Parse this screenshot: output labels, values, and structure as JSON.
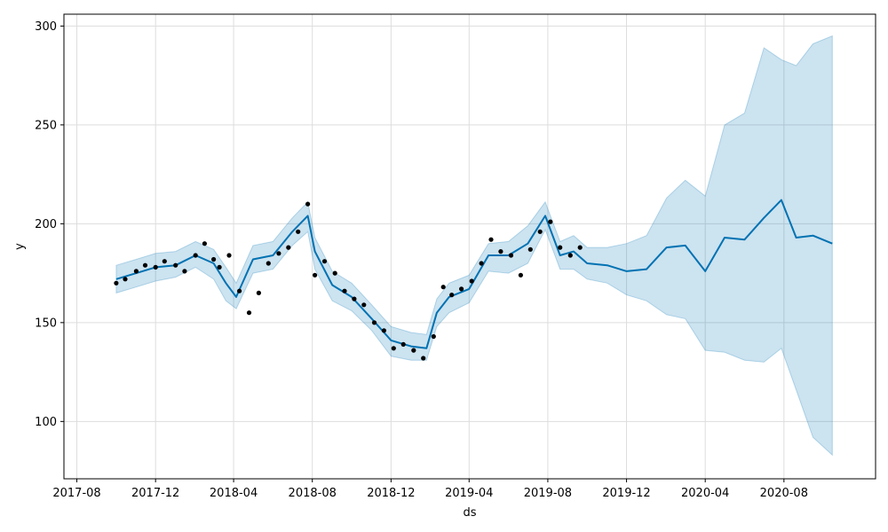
{
  "chart_data": {
    "type": "line",
    "title": "",
    "xlabel": "ds",
    "ylabel": "y",
    "grid": true,
    "colors": {
      "forecast_line": "#0072B2",
      "interval_fill": "#0072B2",
      "observed_points": "#000000",
      "grid": "#dddddd"
    },
    "x_range": [
      "2017-07-12",
      "2020-12-21"
    ],
    "ylim": [
      71,
      306
    ],
    "x_ticks": [
      {
        "date": "2017-08-01",
        "label": "2017-08"
      },
      {
        "date": "2017-12-01",
        "label": "2017-12"
      },
      {
        "date": "2018-04-01",
        "label": "2018-04"
      },
      {
        "date": "2018-08-01",
        "label": "2018-08"
      },
      {
        "date": "2018-12-01",
        "label": "2018-12"
      },
      {
        "date": "2019-04-01",
        "label": "2019-04"
      },
      {
        "date": "2019-08-01",
        "label": "2019-08"
      },
      {
        "date": "2019-12-01",
        "label": "2019-12"
      },
      {
        "date": "2020-04-01",
        "label": "2020-04"
      },
      {
        "date": "2020-08-01",
        "label": "2020-08"
      }
    ],
    "y_ticks": [
      {
        "value": 100,
        "label": "100"
      },
      {
        "value": 150,
        "label": "150"
      },
      {
        "value": 200,
        "label": "200"
      },
      {
        "value": 250,
        "label": "250"
      },
      {
        "value": 300,
        "label": "300"
      }
    ],
    "forecast": {
      "x": [
        "2017-10-01",
        "2017-11-01",
        "2017-12-01",
        "2018-01-01",
        "2018-02-01",
        "2018-03-01",
        "2018-03-20",
        "2018-04-05",
        "2018-05-01",
        "2018-06-01",
        "2018-07-01",
        "2018-07-25",
        "2018-08-05",
        "2018-09-01",
        "2018-10-01",
        "2018-11-01",
        "2018-12-01",
        "2019-01-01",
        "2019-01-25",
        "2019-02-10",
        "2019-03-01",
        "2019-04-01",
        "2019-05-01",
        "2019-06-01",
        "2019-07-01",
        "2019-07-28",
        "2019-08-20",
        "2019-09-10",
        "2019-10-01",
        "2019-11-01",
        "2019-12-01",
        "2020-01-01",
        "2020-02-01",
        "2020-03-01",
        "2020-04-01",
        "2020-05-01",
        "2020-06-01",
        "2020-07-01",
        "2020-07-28",
        "2020-08-20",
        "2020-09-15",
        "2020-10-15"
      ],
      "yhat": [
        172,
        175,
        178,
        179,
        184,
        180,
        170,
        163,
        182,
        184,
        196,
        204,
        186,
        169,
        163,
        152,
        141,
        138,
        137,
        155,
        163,
        167,
        184,
        184,
        190,
        204,
        184,
        186,
        180,
        179,
        176,
        177,
        188,
        189,
        176,
        193,
        192,
        203,
        212,
        193,
        194,
        190
      ],
      "lower": [
        165,
        168,
        171,
        173,
        178,
        172,
        161,
        157,
        175,
        177,
        189,
        196,
        177,
        161,
        156,
        146,
        133,
        131,
        131,
        148,
        155,
        160,
        176,
        175,
        180,
        197,
        177,
        177,
        172,
        170,
        164,
        161,
        154,
        152,
        136,
        135,
        131,
        130,
        137,
        116,
        92,
        83
      ],
      "upper": [
        179,
        182,
        185,
        186,
        191,
        187,
        178,
        170,
        189,
        191,
        203,
        211,
        193,
        176,
        170,
        159,
        148,
        145,
        144,
        162,
        170,
        174,
        190,
        191,
        199,
        211,
        191,
        194,
        188,
        188,
        190,
        194,
        213,
        222,
        214,
        250,
        256,
        289,
        283,
        280,
        291,
        295
      ]
    },
    "observed": {
      "x": [
        "2017-10-01",
        "2017-10-15",
        "2017-11-01",
        "2017-11-15",
        "2017-12-01",
        "2017-12-15",
        "2018-01-01",
        "2018-01-15",
        "2018-02-01",
        "2018-02-15",
        "2018-03-01",
        "2018-03-10",
        "2018-03-25",
        "2018-04-10",
        "2018-04-25",
        "2018-05-10",
        "2018-05-25",
        "2018-06-10",
        "2018-06-25",
        "2018-07-10",
        "2018-07-25",
        "2018-08-05",
        "2018-08-20",
        "2018-09-05",
        "2018-09-20",
        "2018-10-05",
        "2018-10-20",
        "2018-11-05",
        "2018-11-20",
        "2018-12-05",
        "2018-12-20",
        "2019-01-05",
        "2019-01-20",
        "2019-02-05",
        "2019-02-20",
        "2019-03-05",
        "2019-03-20",
        "2019-04-05",
        "2019-04-20",
        "2019-05-05",
        "2019-05-20",
        "2019-06-05",
        "2019-06-20",
        "2019-07-05",
        "2019-07-20",
        "2019-08-05",
        "2019-08-20",
        "2019-09-05",
        "2019-09-20"
      ],
      "y": [
        170,
        172,
        176,
        179,
        178,
        181,
        179,
        176,
        184,
        190,
        182,
        178,
        184,
        166,
        155,
        165,
        180,
        185,
        188,
        196,
        210,
        174,
        181,
        175,
        166,
        162,
        159,
        150,
        146,
        137,
        139,
        136,
        132,
        143,
        168,
        164,
        167,
        171,
        180,
        192,
        186,
        184,
        174,
        187,
        196,
        201,
        188,
        184,
        188
      ]
    }
  }
}
